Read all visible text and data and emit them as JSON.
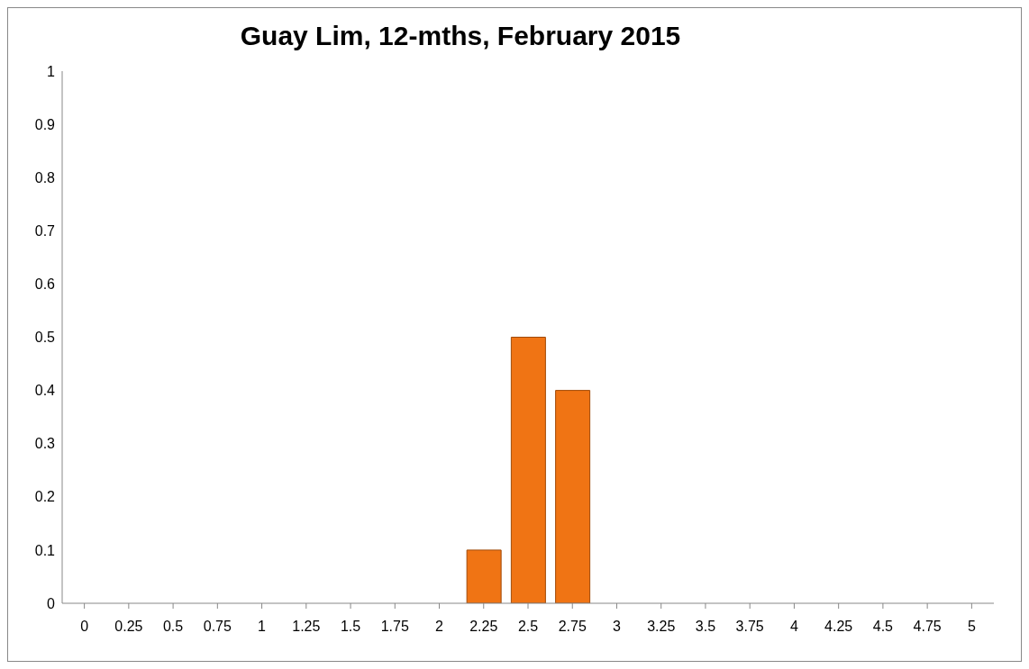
{
  "chart_data": {
    "type": "bar",
    "title": "Guay Lim, 12-mths, February 2015",
    "categories": [
      "0",
      "0.25",
      "0.5",
      "0.75",
      "1",
      "1.25",
      "1.5",
      "1.75",
      "2",
      "2.25",
      "2.5",
      "2.75",
      "3",
      "3.25",
      "3.5",
      "3.75",
      "4",
      "4.25",
      "4.5",
      "4.75",
      "5"
    ],
    "values": [
      0,
      0,
      0,
      0,
      0,
      0,
      0,
      0,
      0,
      0.1,
      0.5,
      0.4,
      0,
      0,
      0,
      0,
      0,
      0,
      0,
      0,
      0
    ],
    "color": "#f07414",
    "ylim": [
      0,
      1
    ],
    "yticks": [
      0,
      0.1,
      0.2,
      0.3,
      0.4,
      0.5,
      0.6,
      0.7,
      0.8,
      0.9,
      1
    ],
    "grid": false,
    "legend": false
  }
}
